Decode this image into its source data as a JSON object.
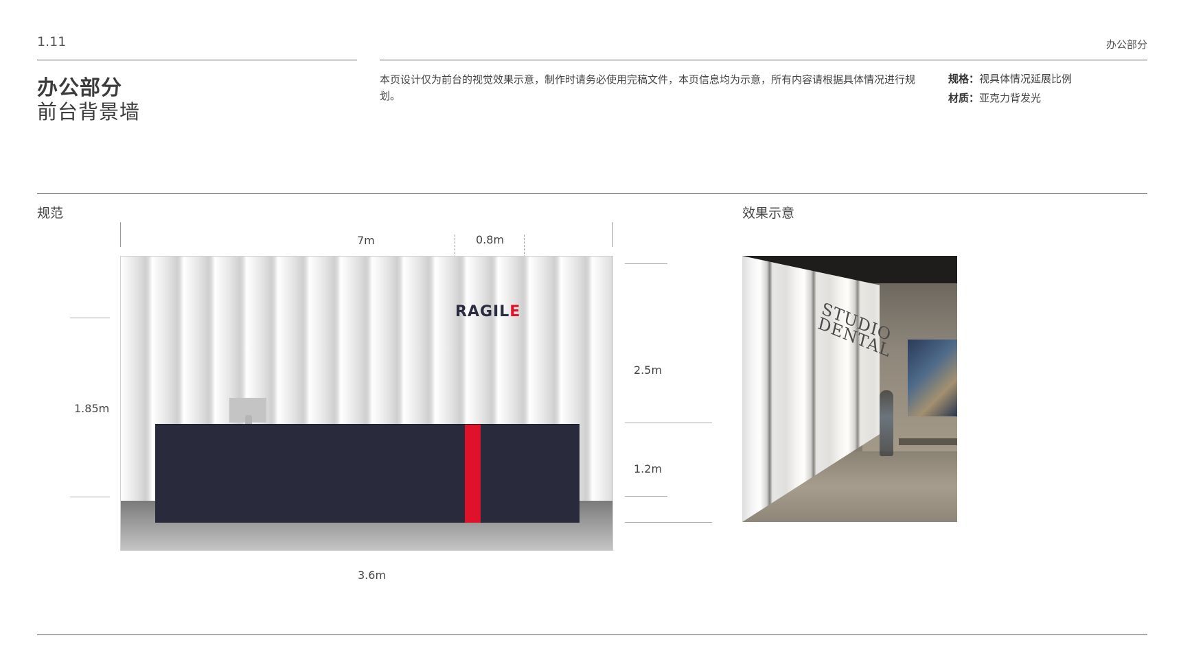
{
  "header": {
    "page_number": "1.11",
    "section_label": "办公部分"
  },
  "title": {
    "main": "办公部分",
    "sub": "前台背景墙"
  },
  "description": "本页设计仅为前台的视觉效果示意，制作时请务必使用完稿文件，本页信息均为示意，所有内容请根据具体情况进行规划。",
  "specs": [
    {
      "key": "规格：",
      "value": "视具体情况延展比例"
    },
    {
      "key": "材质：",
      "value": "亚克力背发光"
    }
  ],
  "spec_section": {
    "heading": "规范",
    "dimensions": {
      "total_width": "7m",
      "logo_width": "0.8m",
      "left_height": "1.85m",
      "upper_height": "2.5m",
      "desk_height": "1.2m",
      "desk_width": "3.6m"
    },
    "logo": {
      "text": "RAGIL",
      "last_letter": "E"
    },
    "colors": {
      "desk": "#2a2a3d",
      "accent": "#e0112b",
      "floor": "#9d9d9d"
    }
  },
  "effect_section": {
    "heading": "效果示意",
    "photo_sign": [
      "STUDIO",
      "DENTAL"
    ]
  }
}
